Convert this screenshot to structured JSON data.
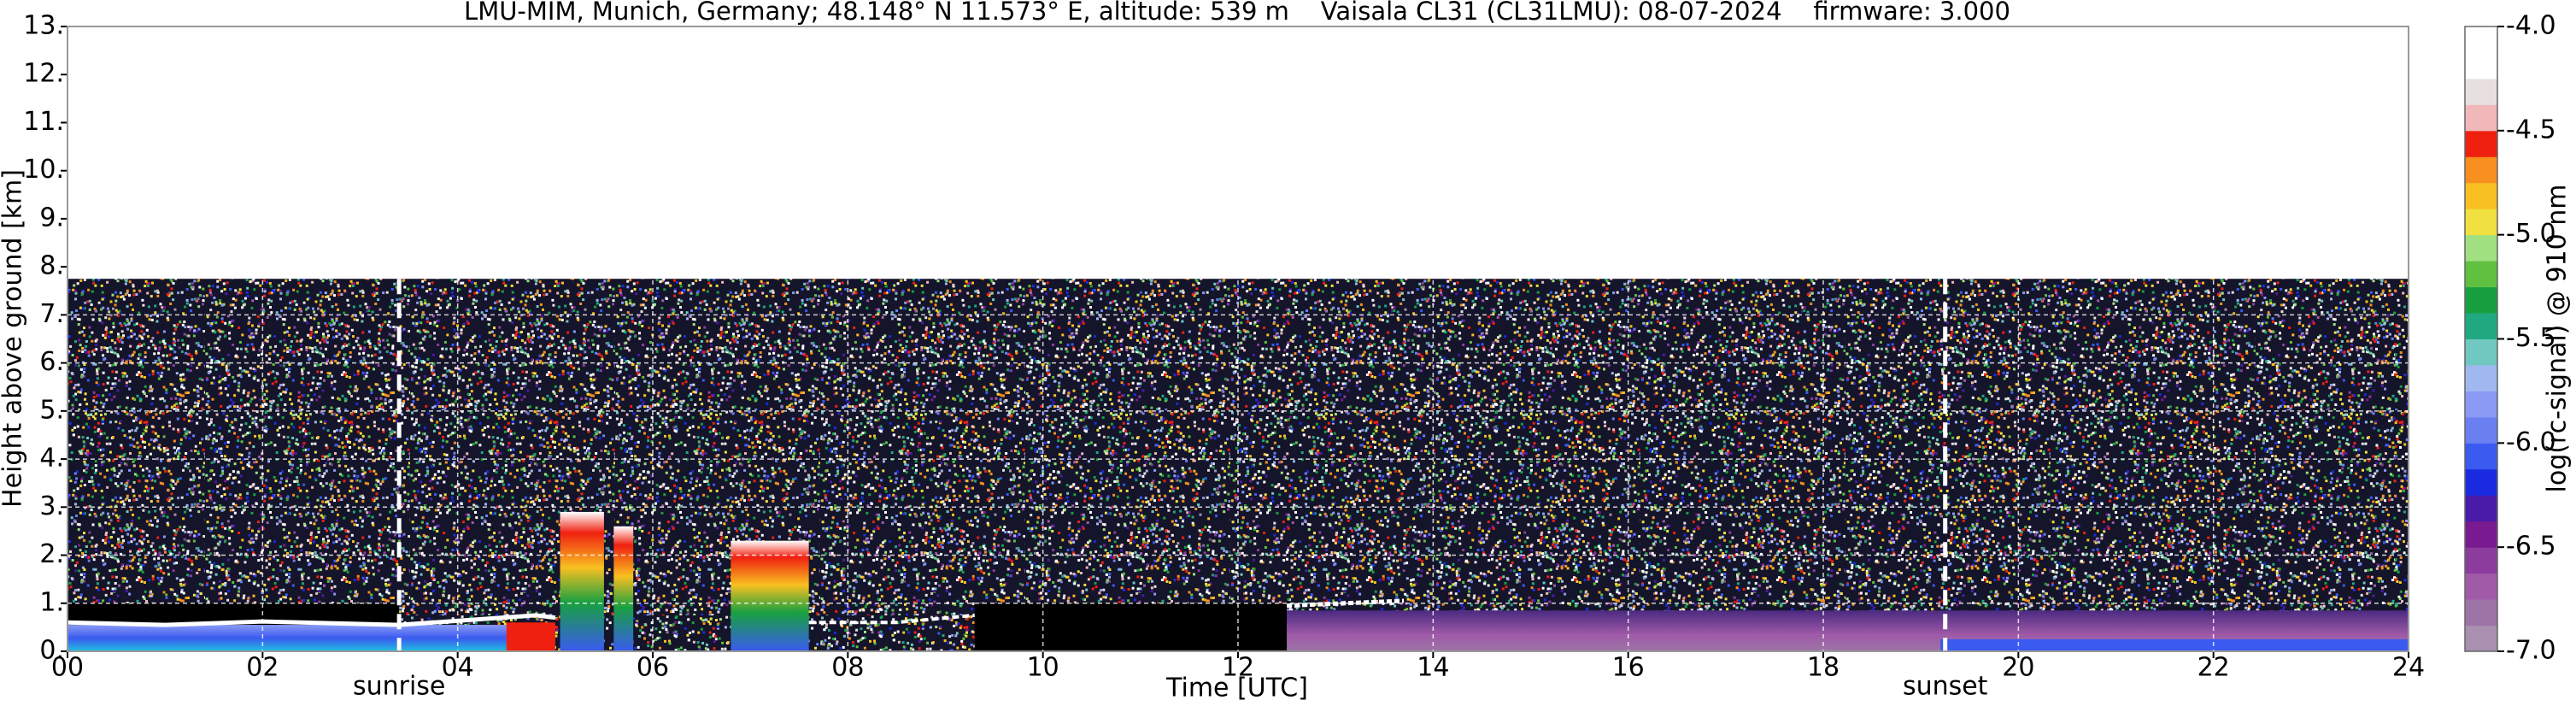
{
  "chart_data": {
    "type": "heatmap",
    "title": "LMU-MIM, Munich, Germany; 48.148° N 11.573° E, altitude: 539 m    Vaisala CL31 (CL31LMU): 08-07-2024    firmware: 3.000",
    "xlabel": "Time [UTC]",
    "ylabel": "Height above ground [km]",
    "xlim": [
      0,
      24
    ],
    "xticks": [
      {
        "value": 0,
        "label": "00"
      },
      {
        "value": 2,
        "label": "02"
      },
      {
        "value": 4,
        "label": "04"
      },
      {
        "value": 6,
        "label": "06"
      },
      {
        "value": 8,
        "label": "08"
      },
      10,
      12,
      14,
      16,
      18,
      20,
      22,
      24
    ],
    "ylim": [
      0,
      13
    ],
    "yticks": [
      {
        "value": 0,
        "label": "0."
      },
      {
        "value": 1,
        "label": "1."
      },
      {
        "value": 2,
        "label": "2."
      },
      {
        "value": 3,
        "label": "3."
      },
      {
        "value": 4,
        "label": "4."
      },
      {
        "value": 5,
        "label": "5."
      },
      {
        "value": 6,
        "label": "6."
      },
      {
        "value": 7,
        "label": "7."
      },
      {
        "value": 8,
        "label": "8."
      },
      {
        "value": 9,
        "label": "9."
      },
      {
        "value": 10,
        "label": "10."
      },
      {
        "value": 11,
        "label": "11."
      },
      {
        "value": 12,
        "label": "12."
      },
      {
        "value": 13,
        "label": "13."
      }
    ],
    "grid": true,
    "annotations": [
      {
        "text": "sunrise",
        "x": 3.4
      },
      {
        "text": "sunset",
        "x": 19.25
      }
    ],
    "colorbar": {
      "label": "log(rc-signal) @ 910 nm",
      "lim": [
        -7,
        -4
      ],
      "ticks": [
        {
          "value": -4,
          "label": "-4.0"
        },
        -4.5,
        {
          "value": -5,
          "label": "-5.0"
        },
        -5.5,
        {
          "value": -6,
          "label": "-6.0"
        },
        -6.5,
        {
          "value": -7,
          "label": "-7.0"
        }
      ],
      "colors": [
        "#a98fb0",
        "#9c75a6",
        "#a05aa8",
        "#8c3c9c",
        "#7a1a90",
        "#4a1aa8",
        "#1a2ae0",
        "#3a5af0",
        "#6a80f0",
        "#8a9af4",
        "#a0b8f0",
        "#70c8c0",
        "#20a880",
        "#18a040",
        "#60c040",
        "#a0e080",
        "#f0e040",
        "#f8c020",
        "#f89020",
        "#f02010",
        "#f0b8b8",
        "#e8e0e0",
        "#ffffff",
        "#ffffff"
      ]
    }
  }
}
